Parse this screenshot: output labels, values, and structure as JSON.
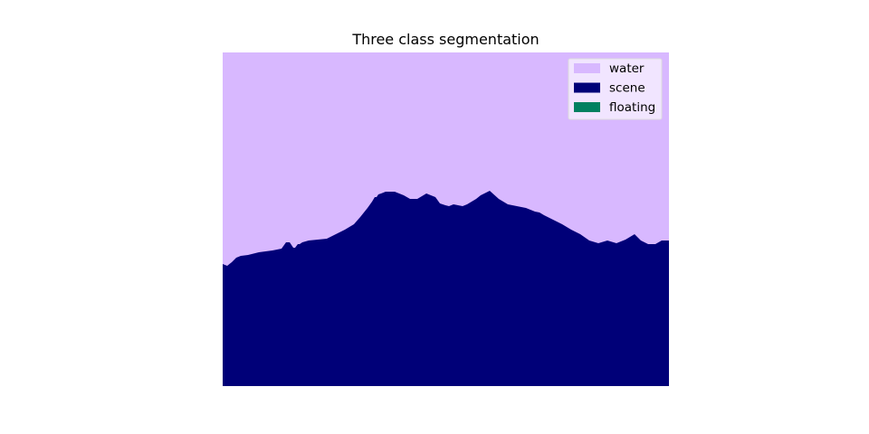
{
  "chart_data": {
    "type": "heatmap",
    "title": "Three class segmentation",
    "xlabel": "",
    "ylabel": "",
    "axes_visible": false,
    "grid": false,
    "legend_position": "top-right",
    "classes": [
      {
        "name": "water",
        "color": "#d8b8ff"
      },
      {
        "name": "scene",
        "color": "#000078"
      },
      {
        "name": "floating",
        "color": "#008060"
      }
    ],
    "image_size": {
      "width": 493,
      "height": 369
    },
    "boundary_note": "",
    "boundary": {
      "x": [
        0,
        5,
        10,
        15,
        20,
        28,
        40,
        55,
        65,
        70,
        74,
        78,
        80,
        83,
        85,
        88,
        95,
        105,
        115,
        125,
        135,
        145,
        152,
        160,
        165,
        168,
        170,
        172,
        175,
        180,
        190,
        200,
        207,
        215,
        225,
        235,
        240,
        246,
        250,
        255,
        260,
        265,
        270,
        275,
        280,
        285,
        295,
        305,
        315,
        325,
        335,
        340,
        345,
        350,
        355,
        365,
        375,
        385,
        395,
        405,
        415,
        425,
        435,
        445,
        455,
        462,
        470,
        478,
        485,
        493
      ],
      "y": [
        234,
        236,
        232,
        227,
        225,
        224,
        221,
        219,
        217,
        210,
        210,
        216,
        216,
        212,
        212,
        210,
        208,
        207,
        206,
        201,
        196,
        190,
        182,
        172,
        165,
        160,
        160,
        157,
        156,
        154,
        154,
        158,
        162,
        162,
        156,
        160,
        167,
        169,
        170,
        168,
        169,
        170,
        168,
        165,
        162,
        158,
        153,
        162,
        168,
        170,
        172,
        174,
        176,
        177,
        180,
        185,
        190,
        196,
        201,
        208,
        211,
        208,
        211,
        207,
        201,
        208,
        212,
        212,
        208,
        208
      ]
    }
  }
}
